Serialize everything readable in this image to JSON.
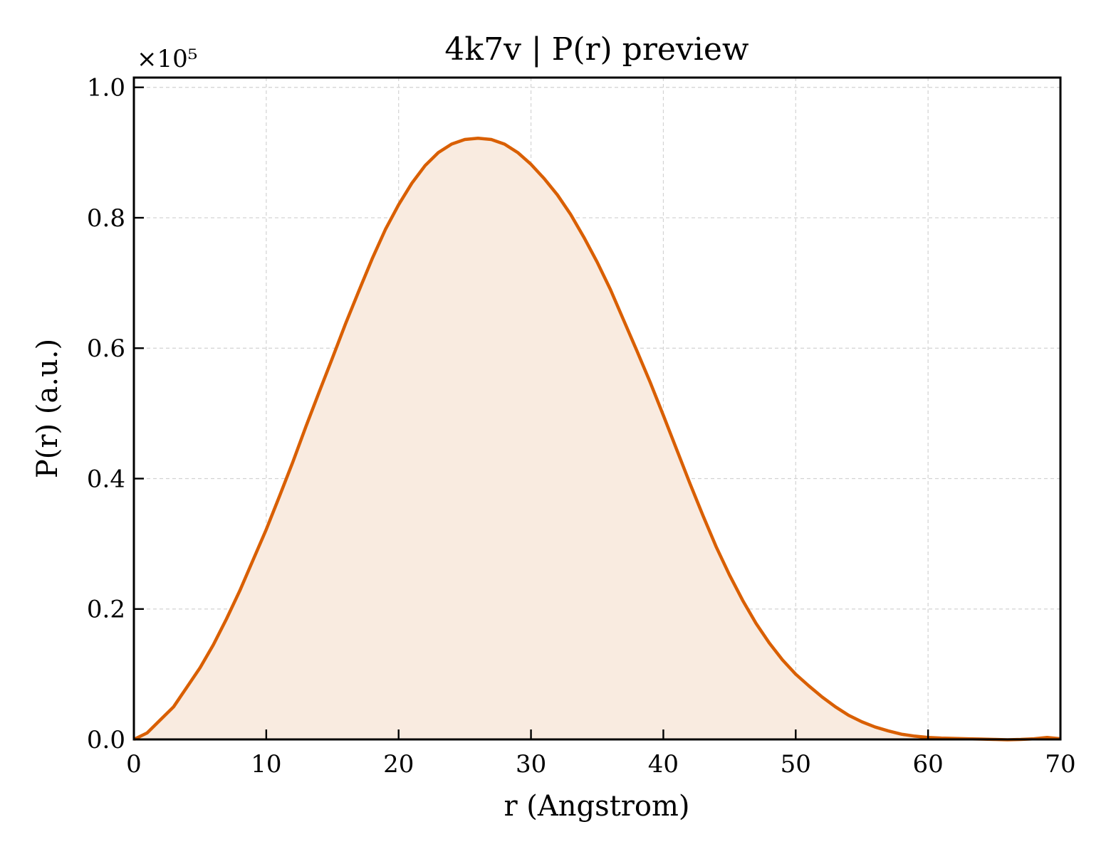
{
  "chart_data": {
    "type": "area",
    "title": "4k7v | P(r) preview",
    "xlabel": "r (Angstrom)",
    "ylabel": "P(r) (a.u.)",
    "y_offset_label": "×10⁵",
    "xlim": [
      0,
      70
    ],
    "ylim": [
      0,
      1.015
    ],
    "y_scale_factor": 100000,
    "x_ticks": [
      0,
      10,
      20,
      30,
      40,
      50,
      60,
      70
    ],
    "x_tick_labels": [
      "0",
      "10",
      "20",
      "30",
      "40",
      "50",
      "60",
      "70"
    ],
    "y_ticks": [
      0.0,
      0.2,
      0.4,
      0.6,
      0.8,
      1.0
    ],
    "y_tick_labels": [
      "0.0",
      "0.2",
      "0.4",
      "0.6",
      "0.8",
      "1.0"
    ],
    "grid": true,
    "line_color": "#d95f02",
    "fill_color": "#f9ebe0",
    "series": [
      {
        "x": [
          0,
          1,
          2,
          3,
          4,
          5,
          6,
          7,
          8,
          9,
          10,
          11,
          12,
          13,
          14,
          15,
          16,
          17,
          18,
          19,
          20,
          21,
          22,
          23,
          24,
          25,
          26,
          27,
          28,
          29,
          30,
          31,
          32,
          33,
          34,
          35,
          36,
          37,
          38,
          39,
          40,
          41,
          42,
          43,
          44,
          45,
          46,
          47,
          48,
          49,
          50,
          51,
          52,
          53,
          54,
          55,
          56,
          57,
          58,
          59,
          60,
          61,
          62,
          63,
          64,
          65,
          66,
          67,
          68,
          69,
          70
        ],
        "y": [
          0.0,
          0.01,
          0.03,
          0.05,
          0.08,
          0.11,
          0.145,
          0.185,
          0.228,
          0.275,
          0.322,
          0.373,
          0.425,
          0.48,
          0.533,
          0.585,
          0.638,
          0.688,
          0.737,
          0.782,
          0.82,
          0.853,
          0.88,
          0.9,
          0.913,
          0.92,
          0.922,
          0.92,
          0.913,
          0.9,
          0.882,
          0.86,
          0.835,
          0.805,
          0.77,
          0.732,
          0.69,
          0.643,
          0.596,
          0.548,
          0.497,
          0.445,
          0.393,
          0.343,
          0.295,
          0.252,
          0.213,
          0.178,
          0.148,
          0.122,
          0.1,
          0.082,
          0.065,
          0.05,
          0.037,
          0.027,
          0.019,
          0.013,
          0.008,
          0.005,
          0.003,
          0.002,
          0.0015,
          0.001,
          0.0005,
          0.0,
          -0.0005,
          0.0,
          0.001,
          0.003,
          0.001
        ]
      }
    ]
  }
}
